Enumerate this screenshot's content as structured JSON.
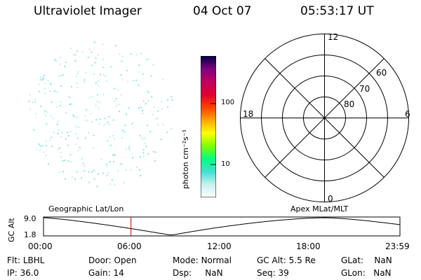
{
  "header": {
    "title": "Ultraviolet Imager",
    "date": "04 Oct 07",
    "time": "05:53:17 UT"
  },
  "colorbar": {
    "unit_label": "photon cm⁻²s⁻¹",
    "ticks": [
      "100",
      "10"
    ],
    "colors": [
      "#ffffff",
      "#c8f0f0",
      "#40e0d0",
      "#00ff80",
      "#80ff00",
      "#ffff00",
      "#ffa500",
      "#ff4000",
      "#e00030",
      "#c00060",
      "#800080",
      "#000040"
    ]
  },
  "polar": {
    "mlt_labels": {
      "top": "12",
      "bottom": "0",
      "left": "18",
      "right": "6"
    },
    "lat_labels": [
      "60",
      "70",
      "80"
    ]
  },
  "timeline": {
    "y_axis_label": "GC Alt",
    "y_top": "9.0",
    "y_bottom": "1.8",
    "left_label": "Geographic Lat/Lon",
    "right_label": "Apex MLat/MLT",
    "time_ticks": [
      "00:00",
      "06:00",
      "12:00",
      "18:00",
      "23:59"
    ],
    "marker_time_hours": 5.89,
    "marker_color": "#c00000"
  },
  "info": {
    "row1": [
      {
        "label": "Flt:",
        "value": "LBHL"
      },
      {
        "label": "Door:",
        "value": "Open"
      },
      {
        "label": "Mode:",
        "value": "Normal"
      },
      {
        "label": "GC Alt:",
        "value": "5.5 Re"
      },
      {
        "label": "GLat:",
        "value": "NaN"
      }
    ],
    "row2": [
      {
        "label": "IP:",
        "value": "36.0"
      },
      {
        "label": "Gain:",
        "value": "14"
      },
      {
        "label": "Dsp:",
        "value": "NaN"
      },
      {
        "label": "Seq:",
        "value": "39"
      },
      {
        "label": "GLon:",
        "value": "NaN"
      }
    ]
  }
}
